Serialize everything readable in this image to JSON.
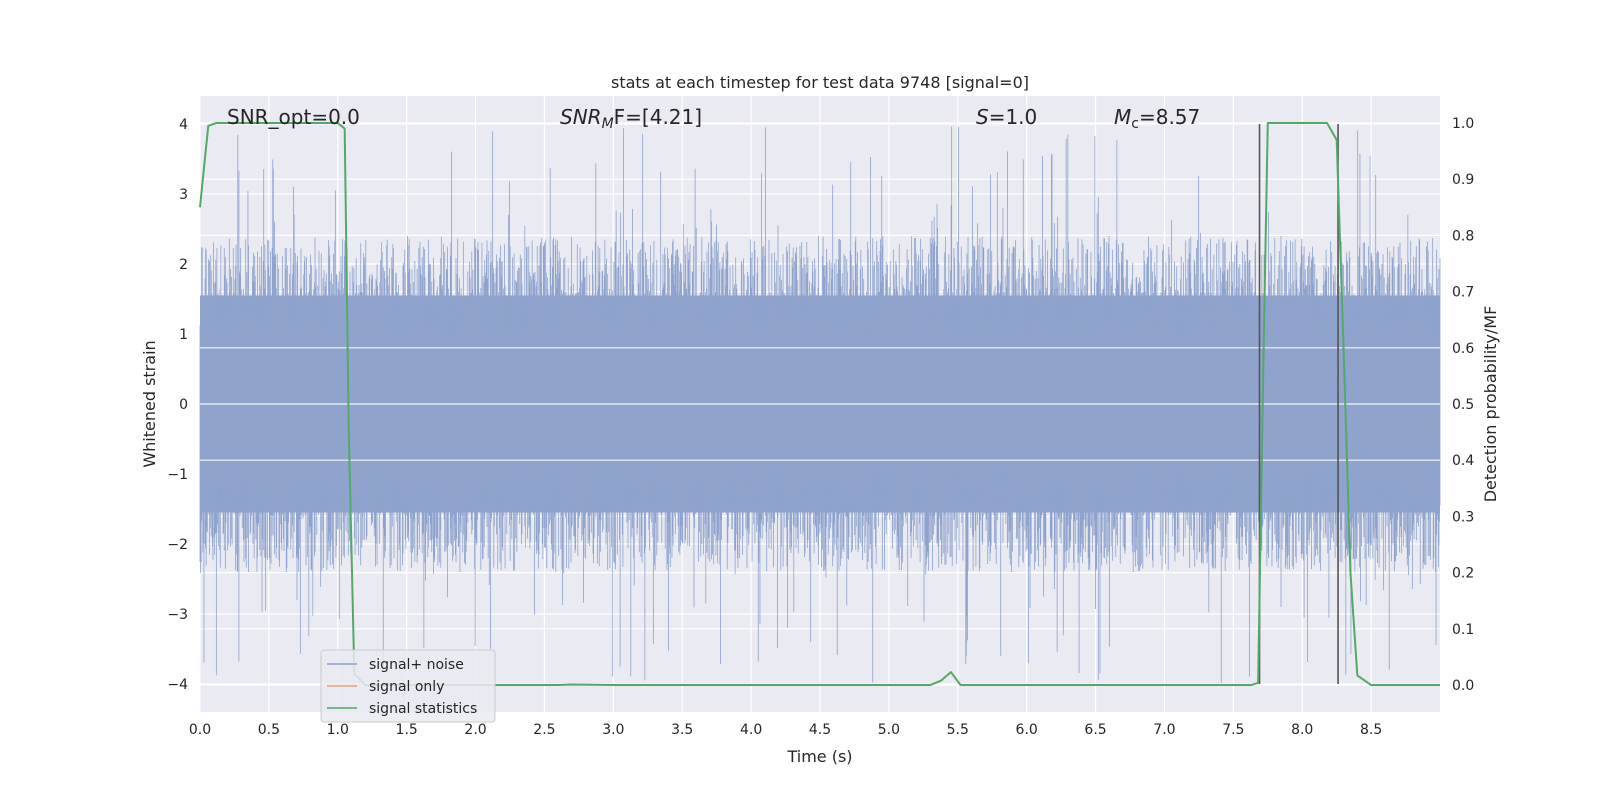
{
  "chart_data": {
    "type": "line",
    "title": "stats at each timestep for test data 9748 [signal=0]",
    "xlabel": "Time (s)",
    "ylabel": "Whitened strain",
    "ylabel_right": "Detection probability/MF",
    "xlim": [
      0.0,
      9.0
    ],
    "ylim": [
      -4.4,
      4.4
    ],
    "ylim_right": [
      -0.048,
      1.048
    ],
    "x_ticks": [
      "0.0",
      "0.5",
      "1.0",
      "1.5",
      "2.0",
      "2.5",
      "3.0",
      "3.5",
      "4.0",
      "4.5",
      "5.0",
      "5.5",
      "6.0",
      "6.5",
      "7.0",
      "7.5",
      "8.0",
      "8.5"
    ],
    "y_ticks": [
      "4",
      "3",
      "2",
      "1",
      "0",
      "−1",
      "−2",
      "−3",
      "−4"
    ],
    "y_ticks_right": [
      "1.0",
      "0.9",
      "0.8",
      "0.7",
      "0.6",
      "0.5",
      "0.4",
      "0.3",
      "0.2",
      "0.1",
      "0.0"
    ],
    "grid": true,
    "legend_position": "lower-left",
    "annotations": {
      "snr_opt": "SNR_opt=0.0",
      "snr_mf_pre": "SNR",
      "snr_mf_sub": "M",
      "snr_mf_post": "F=[4.21]",
      "s_pre": "S",
      "s_post": "=1.0",
      "mc_pre": "M",
      "mc_sub": "c",
      "mc_post": "=8.57"
    },
    "series": [
      {
        "name": "signal+ noise",
        "color": "#8fa3cd",
        "noise_envelope": {
          "typical_max": 2.4,
          "typical_min": -2.4,
          "peak_max": 4.0,
          "peak_min": -4.0
        }
      },
      {
        "name": "signal only",
        "color": "#e7a27f",
        "values": []
      },
      {
        "name": "signal statistics",
        "color": "#55a868",
        "axis": "right",
        "x": [
          0.0,
          0.06,
          0.12,
          0.3,
          0.5,
          0.8,
          1.0,
          1.05,
          1.08,
          1.12,
          1.2,
          2.0,
          2.6,
          2.7,
          3.0,
          4.0,
          5.0,
          5.3,
          5.38,
          5.45,
          5.52,
          6.0,
          7.0,
          7.63,
          7.68,
          7.72,
          7.75,
          7.8,
          8.0,
          8.18,
          8.25,
          8.3,
          8.35,
          8.4,
          8.5,
          9.0
        ],
        "values": [
          0.85,
          0.995,
          1.0,
          1.0,
          1.0,
          1.0,
          1.0,
          0.99,
          0.45,
          0.02,
          0.0,
          0.0,
          0.0,
          0.001,
          0.0,
          0.0,
          0.0,
          0.0,
          0.008,
          0.023,
          0.0,
          0.0,
          0.0,
          0.0,
          0.004,
          0.6,
          1.0,
          1.0,
          1.0,
          1.0,
          0.97,
          0.6,
          0.2,
          0.017,
          0.0,
          0.0
        ]
      }
    ],
    "vertical_lines": [
      {
        "x": 7.69,
        "y_from": -4.0,
        "y_to": 4.0,
        "color": "#555555"
      },
      {
        "x": 8.26,
        "y_from": -4.0,
        "y_to": 4.0,
        "color": "#555555"
      }
    ]
  }
}
